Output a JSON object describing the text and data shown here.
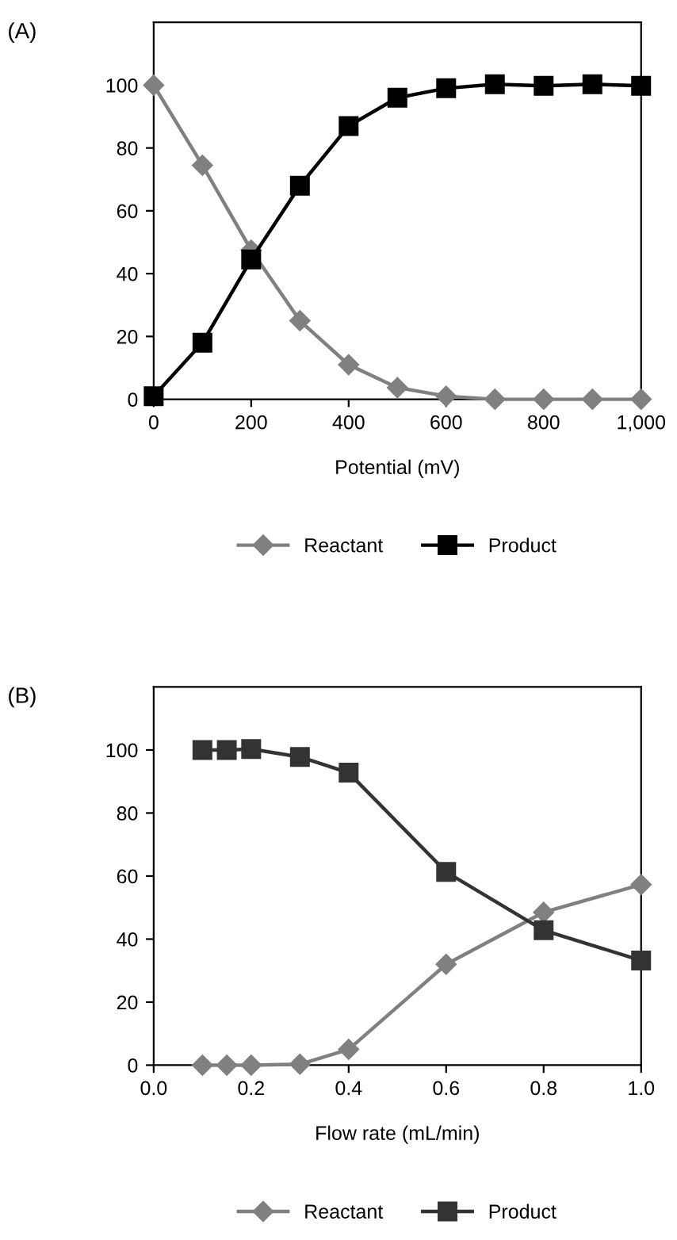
{
  "chart_data": [
    {
      "type": "line",
      "title": "(A)",
      "xlabel": "Potential (mV)",
      "x": [
        0,
        100,
        200,
        300,
        400,
        500,
        600,
        700,
        800,
        900,
        1000
      ],
      "series": [
        {
          "name": "Reactant",
          "color": "#808080",
          "marker": "diamond",
          "values": [
            100,
            74.5,
            47.5,
            25,
            11,
            3.7,
            1,
            0,
            0,
            0,
            0
          ]
        },
        {
          "name": "Product",
          "color": "#000000",
          "marker": "square",
          "values": [
            1,
            18,
            44.5,
            68,
            87,
            96,
            99,
            100.3,
            99.8,
            100.3,
            99.8
          ]
        }
      ],
      "xlim": [
        0,
        1000
      ],
      "xticks": [
        0,
        200,
        400,
        600,
        800,
        {
          "value": 1000,
          "label": "1,000"
        }
      ],
      "ylim": [
        0,
        120
      ],
      "yticks": [
        0,
        20,
        40,
        60,
        80,
        100
      ],
      "grid": false,
      "legend": "bottom",
      "line_style": "solid"
    },
    {
      "type": "line",
      "title": "(B)",
      "xlabel": "Flow rate (mL/min)",
      "x": [
        0.1,
        0.15,
        0.2,
        0.3,
        0.4,
        0.6,
        0.8,
        1.0
      ],
      "series": [
        {
          "name": "Reactant",
          "color": "#808080",
          "marker": "diamond",
          "values": [
            0,
            0,
            0,
            0.3,
            5,
            32,
            48.5,
            57.3
          ]
        },
        {
          "name": "Product",
          "color": "#333333",
          "marker": "square",
          "values": [
            100,
            100,
            100.3,
            97.8,
            92.8,
            61.3,
            42.8,
            33.2
          ]
        }
      ],
      "xlim": [
        0,
        1.0
      ],
      "xticks": [
        {
          "value": 0,
          "label": "0.0"
        },
        0.2,
        0.4,
        0.6,
        0.8,
        {
          "value": 1.0,
          "label": "1.0"
        }
      ],
      "ylim": [
        0,
        120
      ],
      "yticks": [
        0,
        20,
        40,
        60,
        80,
        100
      ],
      "grid": false,
      "legend": "bottom",
      "line_style": "solid"
    }
  ]
}
